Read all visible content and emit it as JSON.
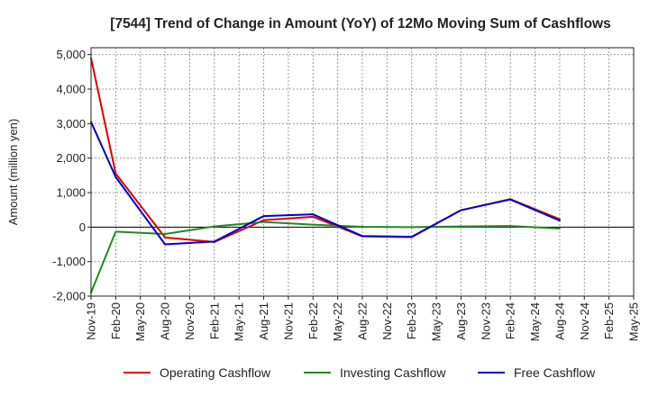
{
  "chart_data": {
    "type": "line",
    "title": "[7544]  Trend of Change in Amount (YoY) of 12Mo Moving Sum of Cashflows",
    "xlabel": "",
    "ylabel": "Amount (million yen)",
    "ylim": [
      -2000,
      5200
    ],
    "yticks": [
      -2000,
      -1000,
      0,
      1000,
      2000,
      3000,
      4000,
      5000
    ],
    "ytick_labels": [
      "-2,000",
      "-1,000",
      "0",
      "1,000",
      "2,000",
      "3,000",
      "4,000",
      "5,000"
    ],
    "grid": true,
    "legend_position": "bottom",
    "categories": [
      "Nov-19",
      "Feb-20",
      "May-20",
      "Aug-20",
      "Nov-20",
      "Feb-21",
      "May-21",
      "Aug-21",
      "Nov-21",
      "Feb-22",
      "May-22",
      "Aug-22",
      "Nov-22",
      "Feb-23",
      "May-23",
      "Aug-23",
      "Nov-23",
      "Feb-24",
      "May-24",
      "Aug-24",
      "Nov-24",
      "Feb-25",
      "May-25"
    ],
    "series": [
      {
        "name": "Operating Cashflow",
        "color": "#dd0000",
        "values": [
          4900,
          1550,
          null,
          -300,
          null,
          -430,
          null,
          200,
          null,
          300,
          null,
          -270,
          null,
          -290,
          null,
          490,
          null,
          810,
          null,
          230,
          null,
          null,
          null
        ]
      },
      {
        "name": "Investing Cashflow",
        "color": "#228822",
        "values": [
          -1900,
          -130,
          null,
          -200,
          null,
          20,
          null,
          150,
          null,
          70,
          null,
          10,
          null,
          0,
          null,
          20,
          null,
          30,
          null,
          -40,
          null,
          null,
          null
        ]
      },
      {
        "name": "Free Cashflow",
        "color": "#0000cc",
        "values": [
          3050,
          1450,
          null,
          -500,
          null,
          -420,
          null,
          320,
          null,
          370,
          null,
          -260,
          null,
          -280,
          null,
          490,
          null,
          800,
          null,
          190,
          null,
          null,
          null
        ]
      }
    ]
  }
}
